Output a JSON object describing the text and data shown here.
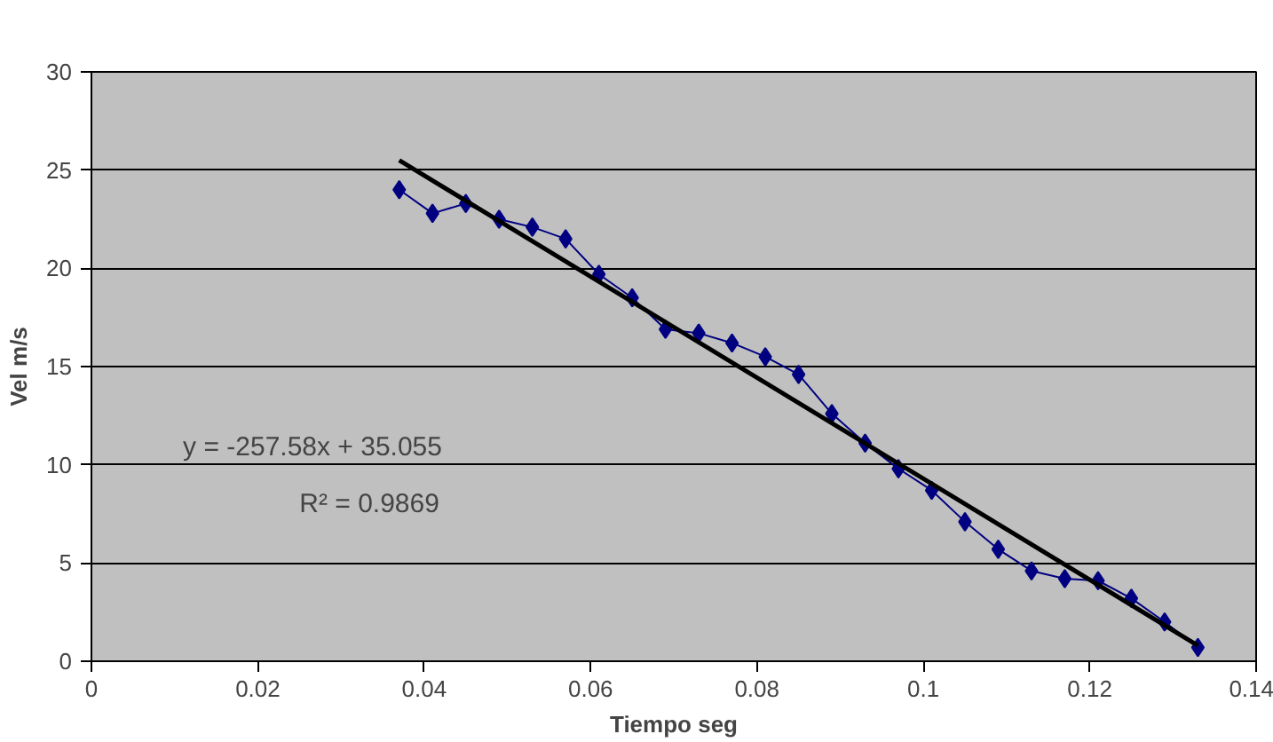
{
  "chart_data": {
    "type": "line",
    "xlabel": "Tiempo seg",
    "ylabel": "Vel m/s",
    "xlim": [
      0,
      0.14
    ],
    "xticks": [
      0,
      0.02,
      0.04,
      0.06,
      0.08,
      0.1,
      0.12,
      0.14
    ],
    "ylim": [
      0,
      30
    ],
    "yticks": [
      0,
      5,
      10,
      15,
      20,
      25,
      30
    ],
    "grid": "y",
    "series": [
      {
        "marker": "diamond",
        "color": "#000080",
        "x": [
          0.037,
          0.041,
          0.045,
          0.049,
          0.053,
          0.057,
          0.061,
          0.065,
          0.069,
          0.073,
          0.077,
          0.081,
          0.085,
          0.089,
          0.093,
          0.097,
          0.101,
          0.105,
          0.109,
          0.113,
          0.117,
          0.121,
          0.125,
          0.129,
          0.133
        ],
        "values": [
          24.0,
          22.8,
          23.3,
          22.5,
          22.1,
          21.5,
          19.7,
          18.5,
          16.9,
          16.7,
          16.2,
          15.5,
          14.6,
          12.6,
          11.1,
          9.8,
          8.7,
          7.1,
          5.7,
          4.6,
          4.2,
          4.1,
          3.2,
          2.0,
          0.7
        ]
      },
      {
        "type": "line",
        "marker": "none",
        "color": "#000000",
        "x": [
          0.037,
          0.133
        ],
        "values": [
          25.5,
          0.8
        ]
      }
    ],
    "annotations": [
      "y = -257.58x + 35.055",
      "R² = 0.9869"
    ]
  }
}
